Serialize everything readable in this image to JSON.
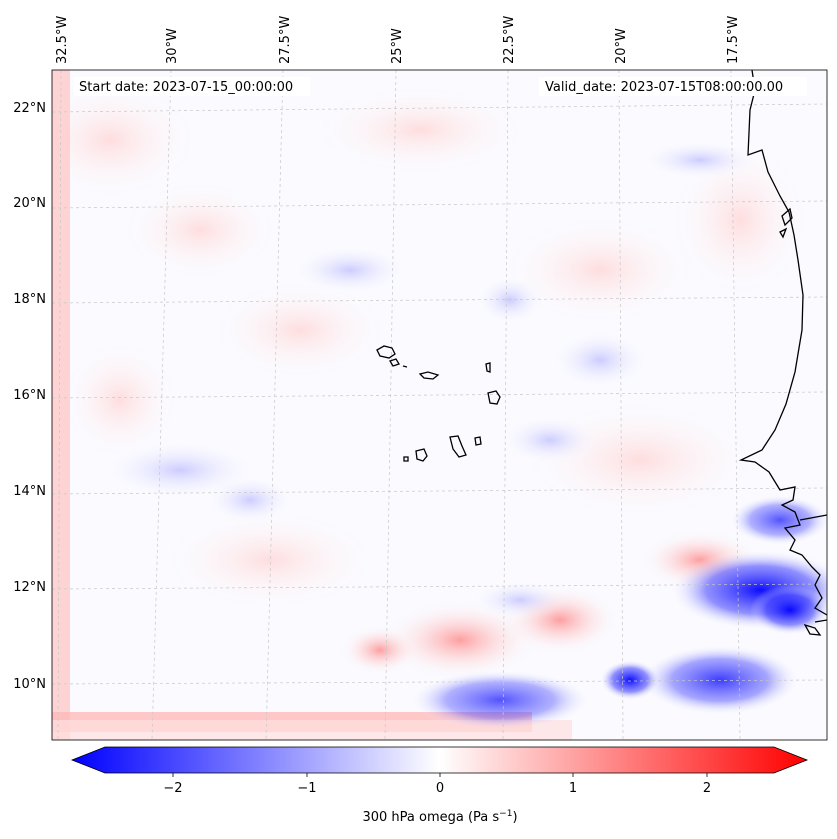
{
  "map": {
    "start_label": "Start date: 2023-07-15_00:00:00",
    "valid_label": "Valid_date: 2023-07-15T08:00:00.00",
    "lon_ticks": [
      "32.5°W",
      "30°W",
      "27.5°W",
      "25°W",
      "22.5°W",
      "20°W",
      "17.5°W"
    ],
    "lat_ticks": [
      "22°N",
      "20°N",
      "18°N",
      "16°N",
      "14°N",
      "12°N",
      "10°N"
    ],
    "colors": {
      "negative": "#0000ff",
      "zero": "#ffffff",
      "positive": "#ff0000",
      "gridline": "#b0b0b0",
      "coast": "#000000"
    }
  },
  "colorbar": {
    "ticks": [
      "−2",
      "−1",
      "0",
      "1",
      "2"
    ],
    "label": "300 hPa omega (Pa s",
    "label_sup": "−1",
    "label_end": ")",
    "range": [
      -2.7,
      2.7
    ]
  }
}
